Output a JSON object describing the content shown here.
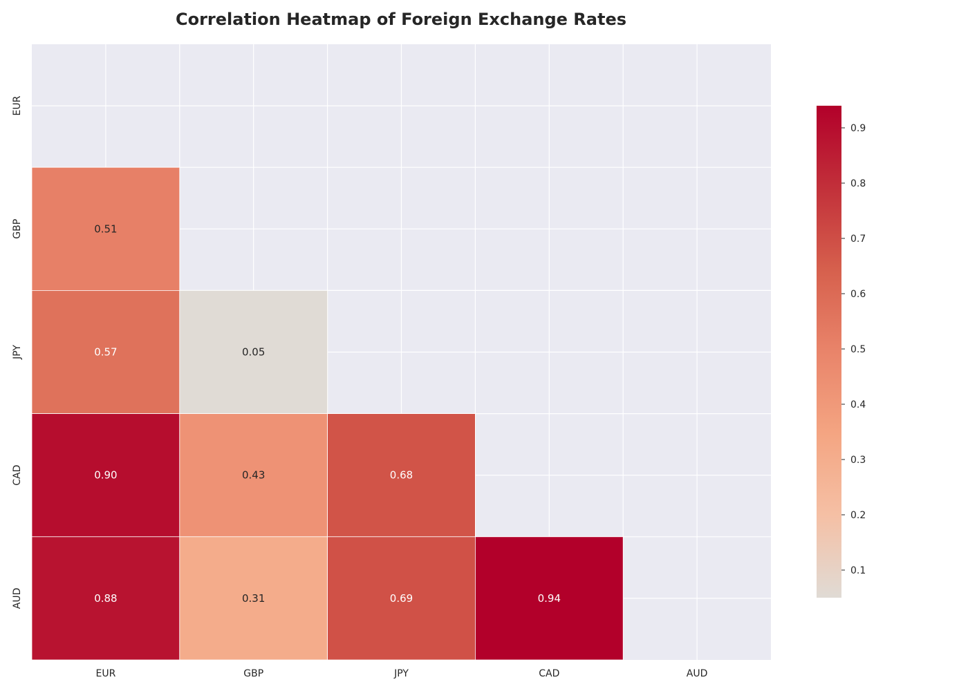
{
  "chart_data": {
    "type": "heatmap",
    "title": "Correlation Heatmap of Foreign Exchange Rates",
    "xlabel": "",
    "ylabel": "",
    "x_categories": [
      "EUR",
      "GBP",
      "JPY",
      "CAD",
      "AUD"
    ],
    "y_categories": [
      "EUR",
      "GBP",
      "JPY",
      "CAD",
      "AUD"
    ],
    "mask": "upper-triangle-including-diagonal",
    "cells": [
      {
        "row": "GBP",
        "col": "EUR",
        "value": 0.51,
        "label": "0.51"
      },
      {
        "row": "JPY",
        "col": "EUR",
        "value": 0.57,
        "label": "0.57"
      },
      {
        "row": "JPY",
        "col": "GBP",
        "value": 0.05,
        "label": "0.05"
      },
      {
        "row": "CAD",
        "col": "EUR",
        "value": 0.9,
        "label": "0.90"
      },
      {
        "row": "CAD",
        "col": "GBP",
        "value": 0.43,
        "label": "0.43"
      },
      {
        "row": "CAD",
        "col": "JPY",
        "value": 0.68,
        "label": "0.68"
      },
      {
        "row": "AUD",
        "col": "EUR",
        "value": 0.88,
        "label": "0.88"
      },
      {
        "row": "AUD",
        "col": "GBP",
        "value": 0.31,
        "label": "0.31"
      },
      {
        "row": "AUD",
        "col": "JPY",
        "value": 0.69,
        "label": "0.69"
      },
      {
        "row": "AUD",
        "col": "CAD",
        "value": 0.94,
        "label": "0.94"
      }
    ],
    "colorbar": {
      "range": [
        0.05,
        0.94
      ],
      "ticks": [
        0.1,
        0.2,
        0.3,
        0.4,
        0.5,
        0.6,
        0.7,
        0.8,
        0.9
      ],
      "tick_labels": [
        "0.1",
        "0.2",
        "0.3",
        "0.4",
        "0.5",
        "0.6",
        "0.7",
        "0.8",
        "0.9"
      ],
      "colormap": "coolwarm (upper half)",
      "color_stops": [
        "#e0dbd5",
        "#f5c0a5",
        "#f4a582",
        "#e9846a",
        "#d6604d",
        "#c2303a",
        "#b2002a"
      ]
    },
    "colors": {
      "background": "#eaeaf2",
      "grid": "#ffffff",
      "text_dark": "#262626",
      "text_light": "#ffffff"
    },
    "grid": true,
    "legend": "colorbar-right"
  }
}
